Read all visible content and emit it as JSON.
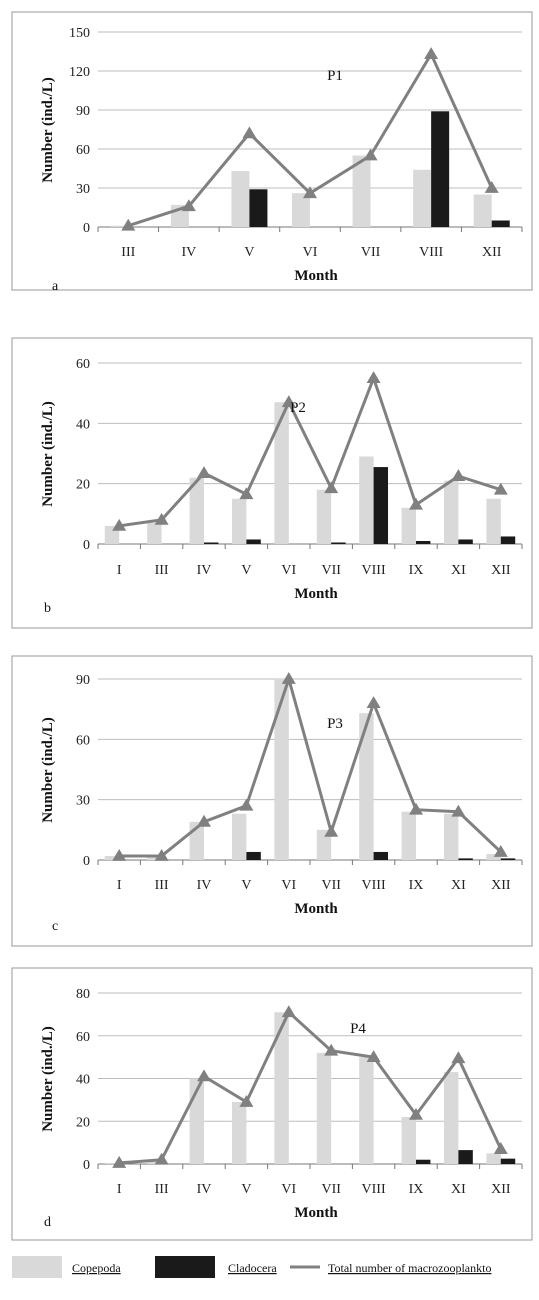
{
  "legend": {
    "copepoda": "Copepoda",
    "cladocera": "Cladocera",
    "total": "Total number of macrozooplankto"
  },
  "colors": {
    "copepoda": "#d9d9d9",
    "cladocera": "#1a1a1a",
    "total": "#808080",
    "grid": "#bdbdbd"
  },
  "chart_data": [
    {
      "type": "bar",
      "panel": "a",
      "title": "P1",
      "xlabel": "Month",
      "ylabel": "Number (ind./L)",
      "ylim": [
        0,
        150
      ],
      "yticks": [
        0,
        30,
        60,
        90,
        120,
        150
      ],
      "categories": [
        "III",
        "IV",
        "V",
        "VI",
        "VII",
        "VIII",
        "XII"
      ],
      "series": [
        {
          "key": "copepoda",
          "type": "bar",
          "values": [
            1,
            17,
            43,
            26,
            55,
            44,
            25
          ]
        },
        {
          "key": "cladocera",
          "type": "bar",
          "values": [
            0,
            0,
            29,
            0,
            0,
            89,
            5
          ]
        },
        {
          "key": "total",
          "type": "line",
          "values": [
            1,
            16,
            72,
            26,
            55,
            133,
            30
          ]
        }
      ]
    },
    {
      "type": "bar",
      "panel": "b",
      "title": "P2",
      "xlabel": "Month",
      "ylabel": "Number (ind./L)",
      "ylim": [
        0,
        60
      ],
      "yticks": [
        0,
        20,
        40,
        60
      ],
      "categories": [
        "I",
        "III",
        "IV",
        "V",
        "VI",
        "VII",
        "VIII",
        "IX",
        "XI",
        "XII"
      ],
      "series": [
        {
          "key": "copepoda",
          "type": "bar",
          "values": [
            6,
            7,
            22,
            15,
            47,
            18,
            29,
            12,
            21,
            15
          ]
        },
        {
          "key": "cladocera",
          "type": "bar",
          "values": [
            0,
            0,
            0.5,
            1.5,
            0,
            0.5,
            25.5,
            1,
            1.5,
            2.5
          ]
        },
        {
          "key": "total",
          "type": "line",
          "values": [
            6,
            8,
            23.5,
            16.5,
            47,
            18.5,
            55,
            13,
            22.5,
            18
          ]
        }
      ]
    },
    {
      "type": "bar",
      "panel": "c",
      "title": "P3",
      "xlabel": "Month",
      "ylabel": "Number (ind./L)",
      "ylim": [
        0,
        90
      ],
      "yticks": [
        0,
        30,
        60,
        90
      ],
      "categories": [
        "I",
        "III",
        "IV",
        "V",
        "VI",
        "VII",
        "VIII",
        "IX",
        "XI",
        "XII"
      ],
      "series": [
        {
          "key": "copepoda",
          "type": "bar",
          "values": [
            2,
            2,
            19,
            23,
            90,
            15,
            73,
            24,
            23,
            3
          ]
        },
        {
          "key": "cladocera",
          "type": "bar",
          "values": [
            0,
            0,
            0,
            4,
            0,
            0,
            4,
            0,
            0.8,
            0.8
          ]
        },
        {
          "key": "total",
          "type": "line",
          "values": [
            2,
            2,
            19,
            27,
            90,
            14,
            78,
            25,
            24,
            4
          ]
        }
      ]
    },
    {
      "type": "bar",
      "panel": "d",
      "title": "P4",
      "xlabel": "Month",
      "ylabel": "Number (ind./L)",
      "ylim": [
        0,
        80
      ],
      "yticks": [
        0,
        20,
        40,
        60,
        80
      ],
      "categories": [
        "I",
        "III",
        "IV",
        "V",
        "VI",
        "VII",
        "VIII",
        "IX",
        "XI",
        "XII"
      ],
      "series": [
        {
          "key": "copepoda",
          "type": "bar",
          "values": [
            0.5,
            1.5,
            40,
            29,
            71,
            52,
            50,
            22,
            43,
            5
          ]
        },
        {
          "key": "cladocera",
          "type": "bar",
          "values": [
            0,
            0,
            0,
            0,
            0,
            0,
            0,
            2,
            6.5,
            2.5
          ]
        },
        {
          "key": "total",
          "type": "line",
          "values": [
            0.5,
            2,
            41,
            29,
            71,
            53,
            50,
            23,
            49.5,
            7
          ]
        }
      ]
    }
  ]
}
